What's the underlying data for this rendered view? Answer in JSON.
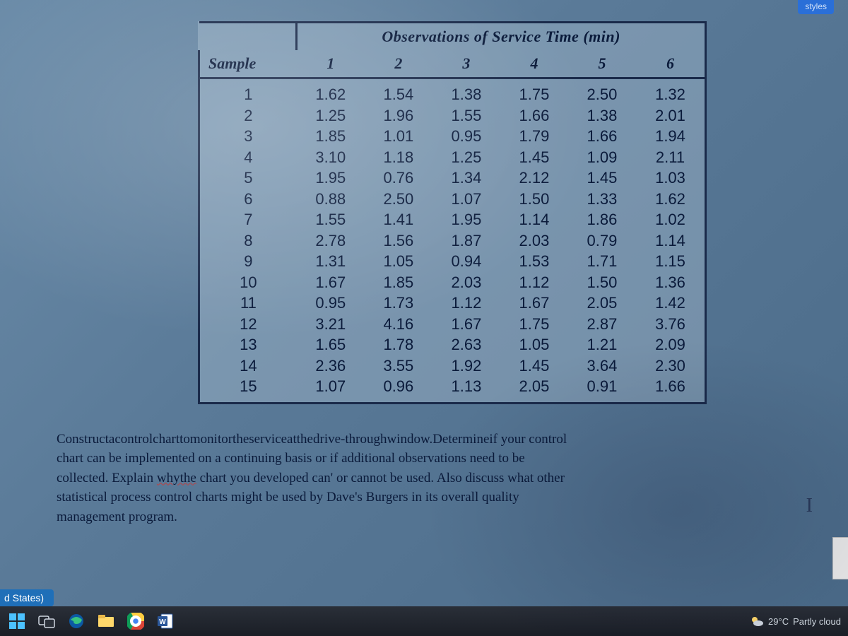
{
  "table": {
    "title": "Observations of Service Time (min)",
    "sample_header": "Sample",
    "observation_headers": [
      "1",
      "2",
      "3",
      "4",
      "5",
      "6"
    ],
    "rows": [
      {
        "sample": "1",
        "obs": [
          "1.62",
          "1.54",
          "1.38",
          "1.75",
          "2.50",
          "1.32"
        ]
      },
      {
        "sample": "2",
        "obs": [
          "1.25",
          "1.96",
          "1.55",
          "1.66",
          "1.38",
          "2.01"
        ]
      },
      {
        "sample": "3",
        "obs": [
          "1.85",
          "1.01",
          "0.95",
          "1.79",
          "1.66",
          "1.94"
        ]
      },
      {
        "sample": "4",
        "obs": [
          "3.10",
          "1.18",
          "1.25",
          "1.45",
          "1.09",
          "2.11"
        ]
      },
      {
        "sample": "5",
        "obs": [
          "1.95",
          "0.76",
          "1.34",
          "2.12",
          "1.45",
          "1.03"
        ]
      },
      {
        "sample": "6",
        "obs": [
          "0.88",
          "2.50",
          "1.07",
          "1.50",
          "1.33",
          "1.62"
        ]
      },
      {
        "sample": "7",
        "obs": [
          "1.55",
          "1.41",
          "1.95",
          "1.14",
          "1.86",
          "1.02"
        ]
      },
      {
        "sample": "8",
        "obs": [
          "2.78",
          "1.56",
          "1.87",
          "2.03",
          "0.79",
          "1.14"
        ]
      },
      {
        "sample": "9",
        "obs": [
          "1.31",
          "1.05",
          "0.94",
          "1.53",
          "1.71",
          "1.15"
        ]
      },
      {
        "sample": "10",
        "obs": [
          "1.67",
          "1.85",
          "2.03",
          "1.12",
          "1.50",
          "1.36"
        ]
      },
      {
        "sample": "11",
        "obs": [
          "0.95",
          "1.73",
          "1.12",
          "1.67",
          "2.05",
          "1.42"
        ]
      },
      {
        "sample": "12",
        "obs": [
          "3.21",
          "4.16",
          "1.67",
          "1.75",
          "2.87",
          "3.76"
        ]
      },
      {
        "sample": "13",
        "obs": [
          "1.65",
          "1.78",
          "2.63",
          "1.05",
          "1.21",
          "2.09"
        ]
      },
      {
        "sample": "14",
        "obs": [
          "2.36",
          "3.55",
          "1.92",
          "1.45",
          "3.64",
          "2.30"
        ]
      },
      {
        "sample": "15",
        "obs": [
          "1.07",
          "0.96",
          "1.13",
          "2.05",
          "0.91",
          "1.66"
        ]
      }
    ],
    "border_color": "#1a2a4a",
    "text_color": "#0a1a3a",
    "header_fontsize": 22,
    "body_fontsize": 22
  },
  "paragraph": {
    "line1_a": "Constructacontrolcharttomonitortheserviceatthedrive-throughwindow.Determineif your control",
    "line2": "chart can be implemented on a continuing basis or if additional observations need to be",
    "line3_a": "collected. Explain ",
    "line3_err": "whythe",
    "line3_b": " chart you developed can' or cannot be used. Also discuss what other",
    "line4": "statistical process control charts might be used by Dave's Burgers in its overall quality",
    "line5": "management program."
  },
  "status": {
    "left": "d States)"
  },
  "taskbar": {
    "weather_temp": "29°C",
    "weather_text": "Partly cloud"
  },
  "top_tab": "styles",
  "colors": {
    "page_bg_top": "#6a8ba8",
    "page_bg_bottom": "#4a6a88",
    "taskbar_bg": "#1a1e26",
    "status_bg": "#1f6fb8"
  }
}
